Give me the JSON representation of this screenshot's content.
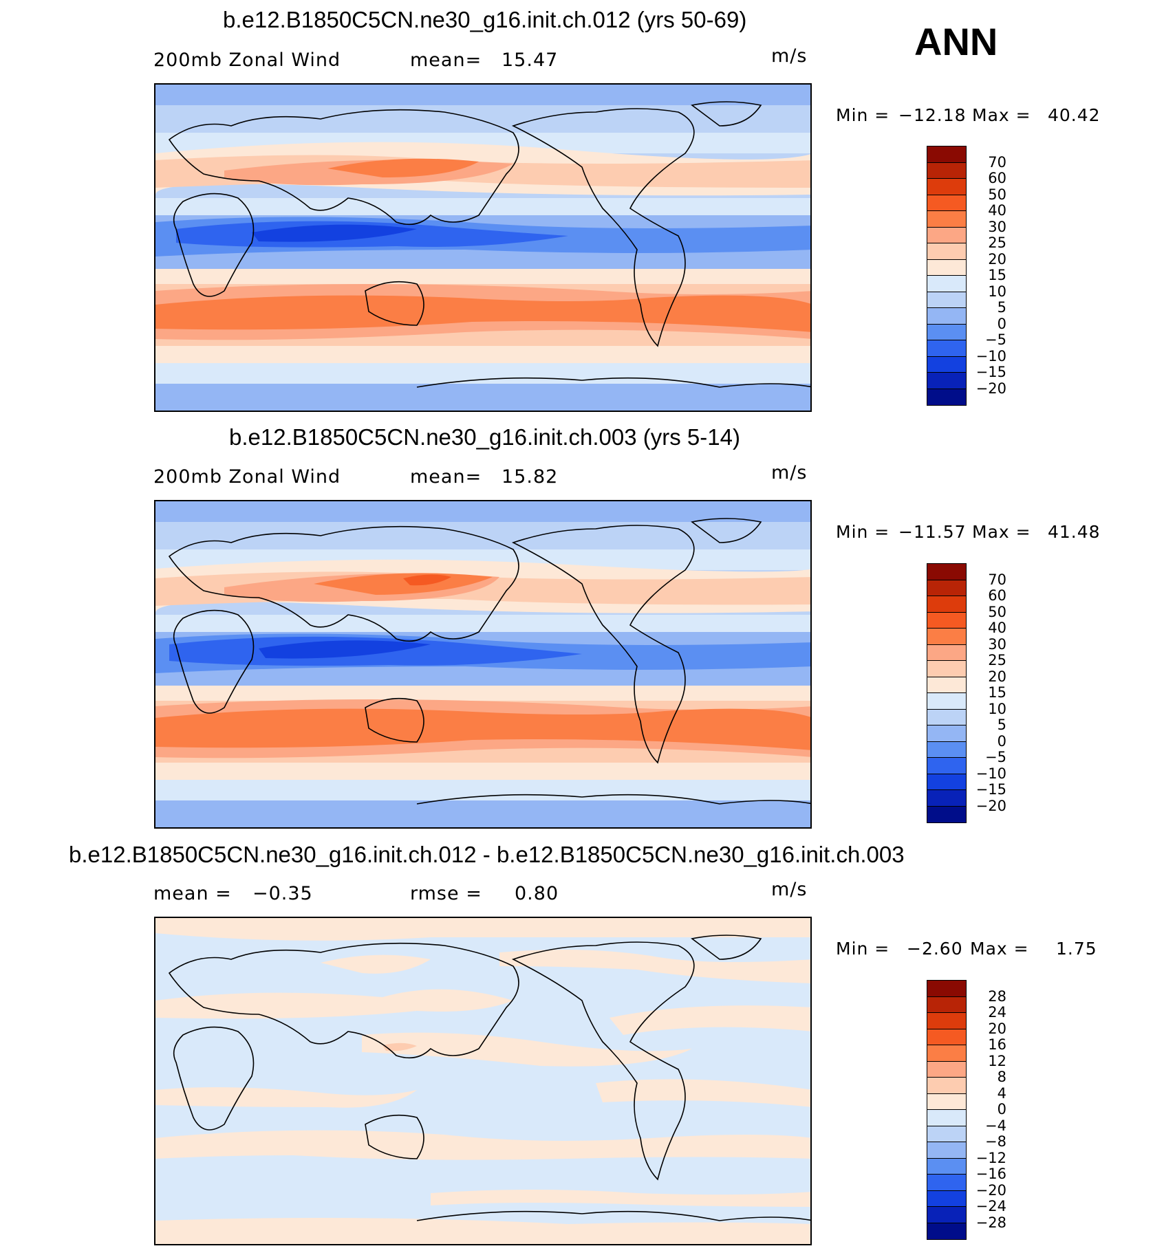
{
  "season": "ANN",
  "panels": [
    {
      "title": "b.e12.B1850C5CN.ne30_g16.init.ch.012 (yrs 50-69)",
      "left_label": "200mb  Zonal  Wind",
      "stat_label": "mean=",
      "stat_value": "15.47",
      "units": "m/s",
      "min_label": "Min  =",
      "min_value": "−12.18",
      "max_label": "Max  =",
      "max_value": "40.42"
    },
    {
      "title": "b.e12.B1850C5CN.ne30_g16.init.ch.003 (yrs 5-14)",
      "left_label": "200mb  Zonal  Wind",
      "stat_label": "mean=",
      "stat_value": "15.82",
      "units": "m/s",
      "min_label": "Min  =",
      "min_value": "−11.57",
      "max_label": "Max  =",
      "max_value": "41.48"
    },
    {
      "title": "b.e12.B1850C5CN.ne30_g16.init.ch.012 - b.e12.B1850C5CN.ne30_g16.init.ch.003",
      "left_label": "mean  =",
      "left_value": "−0.35",
      "stat_label": "rmse  =",
      "stat_value": "0.80",
      "units": "m/s",
      "min_label": "Min  =",
      "min_value": "−2.60",
      "max_label": "Max  =",
      "max_value": "1.75"
    }
  ],
  "colorbar_levels_field": [
    "70",
    "60",
    "50",
    "40",
    "30",
    "25",
    "20",
    "15",
    "10",
    "5",
    "0",
    "−5",
    "−10",
    "−15",
    "−20"
  ],
  "colorbar_levels_diff": [
    "28",
    "24",
    "20",
    "16",
    "12",
    "8",
    "4",
    "0",
    "−4",
    "−8",
    "−12",
    "−16",
    "−20",
    "−24",
    "−28"
  ],
  "colorbar_colors": [
    "#8a0a02",
    "#b82406",
    "#dd3c0c",
    "#f55a22",
    "#fb7e45",
    "#fca785",
    "#fdccb0",
    "#fde8d7",
    "#d9e9fa",
    "#bcd3f6",
    "#94b6f4",
    "#5b8ff2",
    "#2f64ef",
    "#1341e0",
    "#0822b8",
    "#000d8a"
  ]
}
